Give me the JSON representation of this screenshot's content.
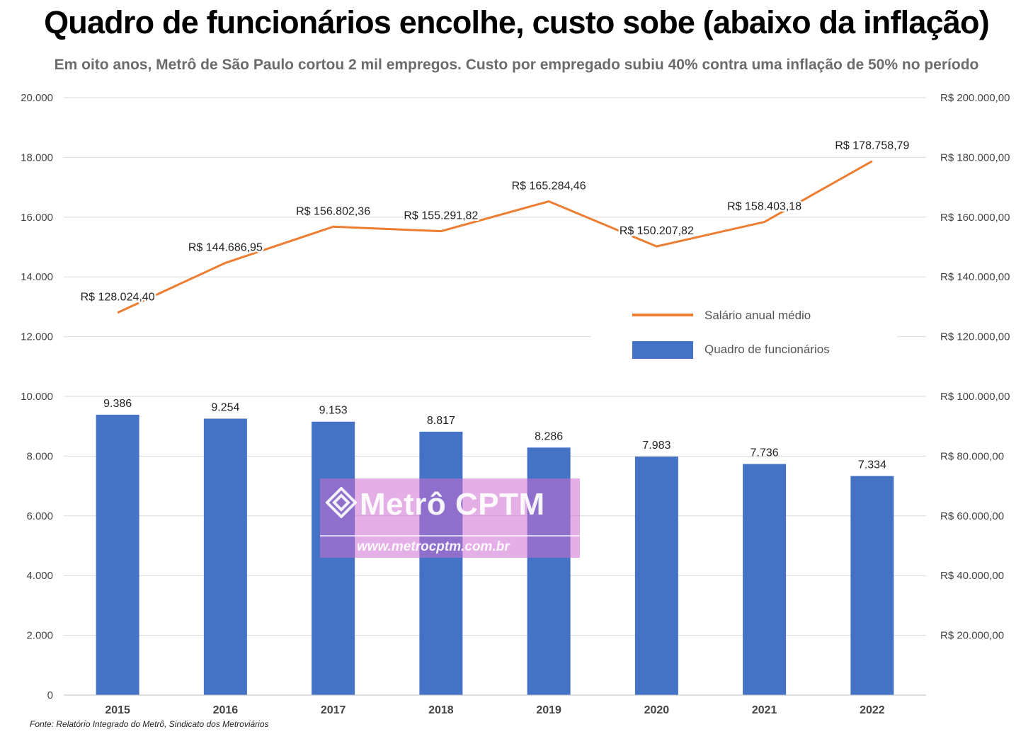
{
  "header": {
    "title": "Quadro de funcionários encolhe, custo sobe (abaixo da inflação)",
    "subtitle": "Em oito anos, Metrô de São Paulo cortou 2 mil empregos. Custo por empregado subiu 40% contra uma inflação de 50% no período"
  },
  "footer": {
    "source": "Fonte: Relatório Integrado do Metrô, Sindicato dos Metroviários"
  },
  "watermark": {
    "name": "Metrô CPTM",
    "url": "www.metrocptm.com.br"
  },
  "chart_data": {
    "type": "bar",
    "categories": [
      "2015",
      "2016",
      "2017",
      "2018",
      "2019",
      "2020",
      "2021",
      "2022"
    ],
    "series": [
      {
        "name": "Quadro de funcionários",
        "type": "bar",
        "axis": "left",
        "color": "#4472c4",
        "values": [
          9386,
          9254,
          9153,
          8817,
          8286,
          7983,
          7736,
          7334
        ],
        "labels": [
          "9.386",
          "9.254",
          "9.153",
          "8.817",
          "8.286",
          "7.983",
          "7.736",
          "7.334"
        ]
      },
      {
        "name": "Salário anual médio",
        "type": "line",
        "axis": "right",
        "color": "#ed7d31",
        "values": [
          128024.4,
          144686.95,
          156802.36,
          155291.82,
          165284.46,
          150207.82,
          158403.18,
          178758.79
        ],
        "labels": [
          "R$ 128.024,40",
          "R$ 144.686,95",
          "R$ 156.802,36",
          "R$ 155.291,82",
          "R$ 165.284,46",
          "R$ 150.207,82",
          "R$ 158.403,18",
          "R$ 178.758,79"
        ]
      }
    ],
    "y_left": {
      "range": [
        0,
        20000
      ],
      "ticks": [
        0,
        2000,
        4000,
        6000,
        8000,
        10000,
        12000,
        14000,
        16000,
        18000,
        20000
      ],
      "tick_labels": [
        "0",
        "2.000",
        "4.000",
        "6.000",
        "8.000",
        "10.000",
        "12.000",
        "14.000",
        "16.000",
        "18.000",
        "20.000"
      ]
    },
    "y_right": {
      "range": [
        0,
        200000
      ],
      "ticks": [
        20000,
        40000,
        60000,
        80000,
        100000,
        120000,
        140000,
        160000,
        180000,
        200000
      ],
      "tick_labels": [
        "R$ 20.000,00",
        "R$ 40.000,00",
        "R$ 60.000,00",
        "R$ 80.000,00",
        "R$ 100.000,00",
        "R$ 120.000,00",
        "R$ 140.000,00",
        "R$ 160.000,00",
        "R$ 180.000,00",
        "R$ 200.000,00"
      ]
    },
    "grid": true,
    "legend_position": "right-middle",
    "legend": [
      "Salário anual médio",
      "Quadro de funcionários"
    ]
  }
}
